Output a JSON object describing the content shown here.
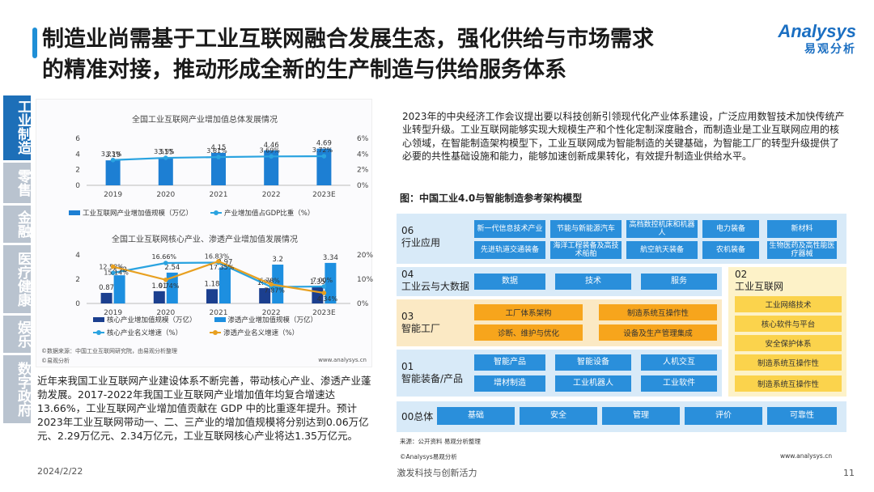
{
  "header": {
    "title_line1": "制造业尚需基于工业互联网融合发展生态，强化供给与市场需求",
    "title_line2": "的精准对接，推动形成全新的生产制造与供给服务体系",
    "logo_en": "Analysys",
    "logo_cn": "易观分析"
  },
  "sidebar": {
    "items": [
      {
        "label": "工业制造",
        "active": true
      },
      {
        "label": "零售",
        "active": false
      },
      {
        "label": "金融",
        "active": false
      },
      {
        "label": "医疗健康",
        "active": false
      },
      {
        "label": "娱乐",
        "active": false
      },
      {
        "label": "数字政府",
        "active": false
      }
    ]
  },
  "chart_data": [
    {
      "type": "bar",
      "title": "全国工业互联网产业增加值总体发展情况",
      "categories": [
        "2019",
        "2020",
        "2021",
        "2022",
        "2023E"
      ],
      "ylim_left": [
        0,
        6
      ],
      "ylim_right": [
        0,
        6
      ],
      "yticks_left": [
        "0",
        "2",
        "4",
        "6"
      ],
      "yticks_right": [
        "0%",
        "2%",
        "4%",
        "6%"
      ],
      "series": [
        {
          "name": "工业互联网产业增加值规模（万亿）",
          "type": "bar",
          "axis": "left",
          "color": "#1d7fd3",
          "values": [
            3.19,
            3.55,
            4.15,
            4.46,
            4.69
          ],
          "labels": [
            "3.19",
            "3.55",
            "4.15",
            "4.46",
            "4.69"
          ]
        },
        {
          "name": "产业增加值占GDP比重（%）",
          "type": "line",
          "axis": "right",
          "color": "#2aa3e0",
          "values": [
            3.23,
            3.51,
            3.61,
            3.69,
            3.72
          ],
          "labels": [
            "3.23%",
            "3.51%",
            "3.61%",
            "3.69%",
            "3.72%"
          ]
        }
      ],
      "legend": "bottom"
    },
    {
      "type": "bar",
      "title": "全国工业互联网核心产业、渗透产业增加值发展情况",
      "categories": [
        "2019",
        "2020",
        "2021",
        "2022",
        "2023E"
      ],
      "ylim_left": [
        0,
        4
      ],
      "ylim_right": [
        0,
        20
      ],
      "yticks_left": [
        "0",
        "2",
        "4"
      ],
      "yticks_right": [
        "0%",
        "10%",
        "20%"
      ],
      "series": [
        {
          "name": "核心产业增加值规模（万亿）",
          "type": "bar",
          "axis": "left",
          "color": "#1b3f8f",
          "values": [
            0.87,
            1.01,
            1.18,
            1.26,
            1.35
          ],
          "labels": [
            "0.87",
            "1.01",
            "1.18",
            "1.26",
            "1.35"
          ]
        },
        {
          "name": "渗透产业增加值规模（万亿）",
          "type": "bar",
          "axis": "left",
          "color": "#1d8fe0",
          "values": [
            2.32,
            2.54,
            2.97,
            3.2,
            3.34
          ],
          "labels": [
            "2.32",
            "2.54",
            "2.97",
            "3.2",
            "3.34"
          ]
        },
        {
          "name": "核心产业名义增速（%）",
          "type": "line",
          "axis": "right",
          "color": "#2aa3e0",
          "values": [
            12.58,
            16.66,
            16.83,
            6.78,
            7.0
          ],
          "labels": [
            "12.58%",
            "16.66%",
            "16.83%",
            "6.78%",
            "7.00%"
          ]
        },
        {
          "name": "渗透产业名义增速（%）",
          "type": "line",
          "axis": "right",
          "color": "#e8a020",
          "values": [
            15.14,
            9.74,
            17.35,
            7.87,
            4.34
          ],
          "labels": [
            "15.14%",
            "9.74%",
            "17.35%",
            "7.87%",
            "4.34%"
          ]
        }
      ],
      "extra_labels": [
        "16.14%",
        "16.57%"
      ],
      "legend": "bottom"
    }
  ],
  "chart_notes": {
    "source": "©数据来源：中国工业互联网研究院，由易观分析整理",
    "brand": "©易观分析",
    "site": "www.analysys.cn"
  },
  "left_paragraph": "近年来我国工业互联网产业建设体系不断完善，带动核心产业、渗透产业蓬勃发展。2017-2022年我国工业互联网产业增加值年均复合增速达 13.66%，工业互联网产业增加值贡献在 GDP 中的比重逐年提升。预计2023年工业互联网带动一、二、三产业的增加值规模将分别达到0.06万亿元、2.29万亿元、2.34万亿元，工业互联网核心产业将达1.35万亿元。",
  "right_paragraph": "2023年的中央经济工作会议提出要以科技创新引领现代化产业体系建设，广泛应用数智技术加快传统产业转型升级。工业互联网能够实现大规模生产和个性化定制深度融合，而制造业是工业互联网应用的核心领域，在智能制造架构模型下，工业互联网成为智能制造的关键基础，为智能工厂的转型升级提供了必要的共性基础设施和能力，能够加速创新成果转化，有效提升制造业供给水平。",
  "figure": {
    "title": "图：中国工业4.0与智能制造参考架构模型",
    "layers": {
      "l06": {
        "num": "06",
        "name": "行业应用",
        "items": [
          "新一代信息技术产业",
          "节能与新能源汽车",
          "高档数控机床和机器人",
          "电力装备",
          "新材料",
          "先进轨道交通装备",
          "海洋工程装备及高技术船舶",
          "航空航天装备",
          "农机装备",
          "生物医药及高性能医疗器械"
        ]
      },
      "l04": {
        "num": "04",
        "name": "工业云与大数据",
        "items": [
          "数据",
          "技术",
          "服务"
        ]
      },
      "l03": {
        "num": "03",
        "name": "智能工厂",
        "items": [
          "工厂体系架构",
          "制造系统互操作性",
          "诊断、维护与优化",
          "设备及生产管理集成"
        ]
      },
      "l01": {
        "num": "01",
        "name": "智能装备/产品",
        "items": [
          "智能产品",
          "智能设备",
          "人机交互",
          "增材制造",
          "工业机器人",
          "工业软件"
        ]
      },
      "l02": {
        "num": "02",
        "name": "工业互联网",
        "items": [
          "工业网络技术",
          "核心软件与平台",
          "安全保护体系",
          "制造系统互操作性",
          "制造系统互操作性"
        ]
      },
      "l00": {
        "name": "00总体",
        "items": [
          "基础",
          "安全",
          "管理",
          "评价",
          "可靠性"
        ]
      }
    },
    "source": "来源：公开资料 易观分析整理",
    "brand": "©Analysys易观分析",
    "site": "www.analysys.cn"
  },
  "footer": {
    "date": "2024/2/22",
    "center": "激发科技与创新活力",
    "page": "11"
  }
}
